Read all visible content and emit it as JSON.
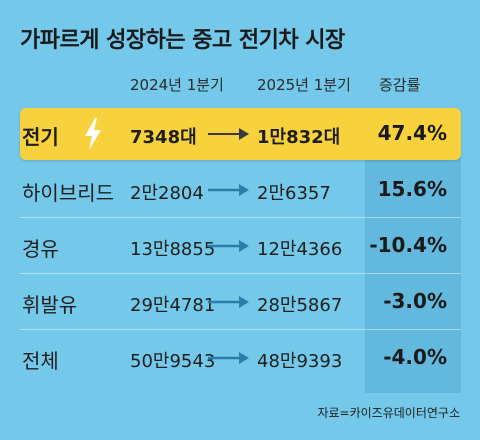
{
  "title": "가파르게 성장하는 중고 전기차 시장",
  "chart_data": {
    "type": "table",
    "columns": [
      "2024년 1분기",
      "2025년 1분기",
      "증감률"
    ],
    "rows": [
      {
        "label": "전기",
        "v2024": "7348대",
        "v2025": "1만832대",
        "change": "47.4%",
        "highlight": true
      },
      {
        "label": "하이브리드",
        "v2024": "2만2804",
        "v2025": "2만6357",
        "change": "15.6%"
      },
      {
        "label": "경유",
        "v2024": "13만8855",
        "v2025": "12만4366",
        "change": "-10.4%"
      },
      {
        "label": "휘발유",
        "v2024": "29만4781",
        "v2025": "28만5867",
        "change": "-3.0%"
      },
      {
        "label": "전체",
        "v2024": "50만9543",
        "v2025": "48만9393",
        "change": "-4.0%"
      }
    ],
    "values_2024": [
      7348,
      22804,
      138855,
      294781,
      509543
    ],
    "values_2025": [
      10832,
      26357,
      124366,
      285867,
      489393
    ],
    "change_pct": [
      47.4,
      15.6,
      -10.4,
      -3.0,
      -4.0
    ]
  },
  "source": "자료=카이즈유데이터연구소",
  "colors": {
    "background": "#74c8ea",
    "highlight": "#f7d23c",
    "change_column": "#62b9dd",
    "arrow": "#2a7fa8",
    "bolt": "#ffffff"
  },
  "icons": {
    "highlight_row": "lightning-bolt-icon",
    "trend": "right-arrow-icon"
  }
}
